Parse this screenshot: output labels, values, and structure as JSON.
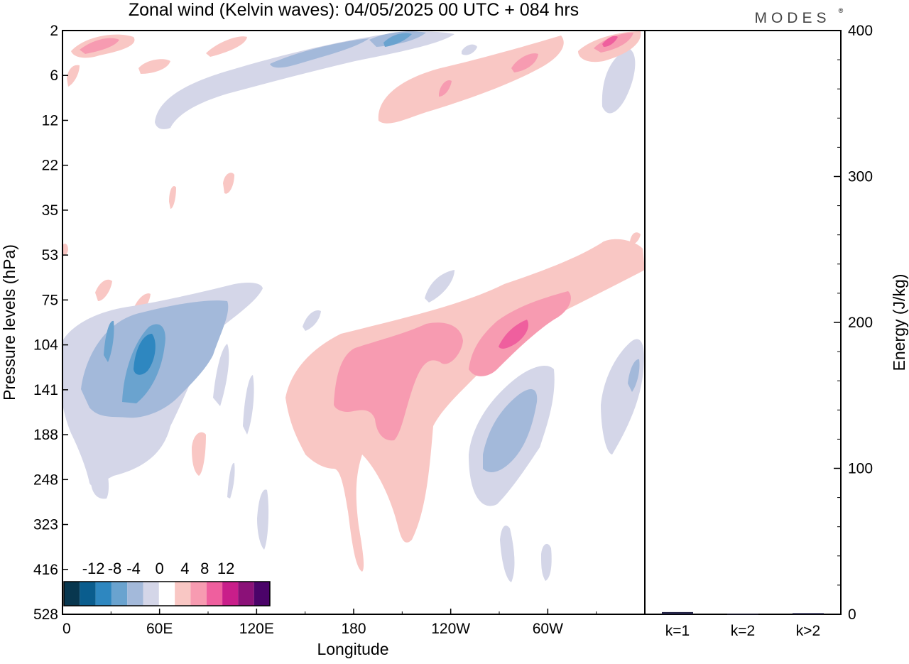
{
  "header": {
    "title": "Zonal wind (Kelvin waves):  04/05/2025  00 UTC  + 084 hrs",
    "brand": "MODES",
    "brand_mark": "®"
  },
  "chart_data": [
    {
      "type": "heatmap",
      "title": "Zonal wind (Kelvin waves):  04/05/2025  00 UTC  + 084 hrs",
      "xlabel": "Longitude",
      "ylabel": "Pressure levels (hPa)",
      "x_ticks": [
        "0",
        "60E",
        "120E",
        "180",
        "120W",
        "60W"
      ],
      "y_ticks": [
        "2",
        "6",
        "12",
        "22",
        "35",
        "53",
        "75",
        "104",
        "141",
        "188",
        "248",
        "323",
        "416",
        "528"
      ],
      "colorbar": {
        "labels": [
          "-12",
          "-8",
          "-4",
          "0",
          "4",
          "8",
          "12"
        ],
        "levels": [
          -14,
          -12,
          -10,
          -8,
          -6,
          -4,
          -2,
          2,
          4,
          6,
          8,
          10,
          12,
          14
        ],
        "colors": [
          "#08374f",
          "#0a5d8e",
          "#2e87c0",
          "#6aa3cf",
          "#a3b9da",
          "#d4d6e8",
          "#ffffff",
          "#f9c7c4",
          "#f79bb1",
          "#ef5f9e",
          "#c91e8a",
          "#8b1178",
          "#4b0369"
        ]
      },
      "features": [
        {
          "sign": "negative",
          "value": -12,
          "lon": 52,
          "level": 104
        },
        {
          "sign": "negative",
          "value": -8,
          "lon": 268,
          "level": 170
        },
        {
          "sign": "negative",
          "value": -4,
          "lon": 195,
          "level": 2
        },
        {
          "sign": "positive",
          "value": 10,
          "lon": 270,
          "level": 100
        },
        {
          "sign": "positive",
          "value": 6,
          "lon": 200,
          "level": 140
        },
        {
          "sign": "positive",
          "value": 8,
          "lon": 335,
          "level": 2
        }
      ]
    },
    {
      "type": "bar",
      "categories": [
        "k=1",
        "k=2",
        "k>2"
      ],
      "values": [
        1.5,
        0.3,
        0.8
      ],
      "ylabel": "Energy (J/kg)",
      "ylim": [
        0,
        400
      ],
      "y_ticks": [
        "0",
        "100",
        "200",
        "300",
        "400"
      ],
      "bar_color": "#222244"
    }
  ]
}
